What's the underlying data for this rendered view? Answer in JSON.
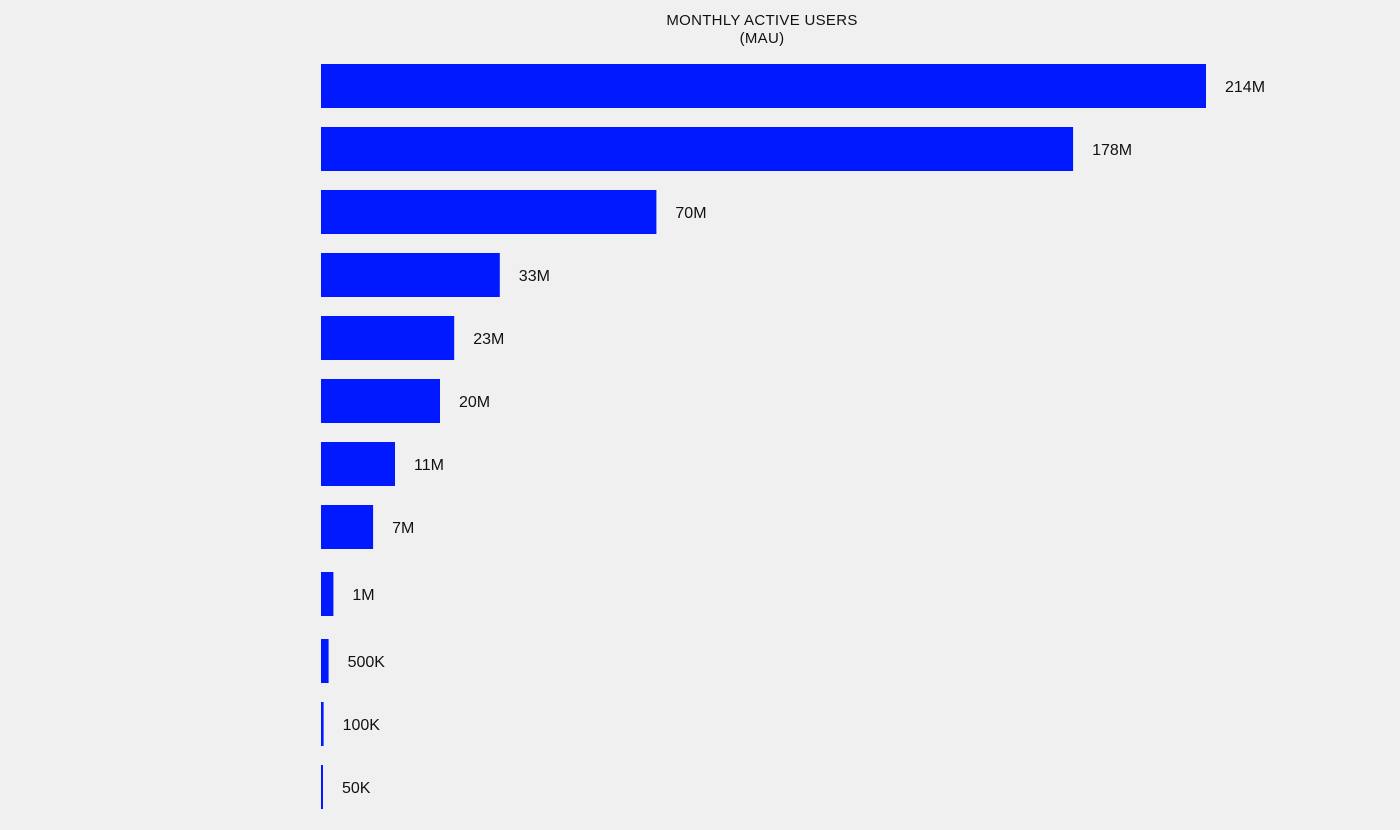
{
  "chart_data": {
    "type": "bar",
    "orientation": "horizontal",
    "title": "MONTHLY ACTIVE USERS",
    "subtitle": "(MAU)",
    "xlabel": "",
    "ylabel": "",
    "grid": false,
    "legend": "none",
    "bar_color": "#0019ff",
    "values": [
      214000000,
      178000000,
      70000000,
      33000000,
      23000000,
      20000000,
      11000000,
      7000000,
      1000000,
      500000,
      100000,
      50000
    ],
    "value_labels": [
      "214M",
      "178M",
      "70M",
      "33M",
      "23M",
      "20M",
      "11M",
      "7M",
      "1M",
      "500K",
      "100K",
      "50K"
    ]
  }
}
